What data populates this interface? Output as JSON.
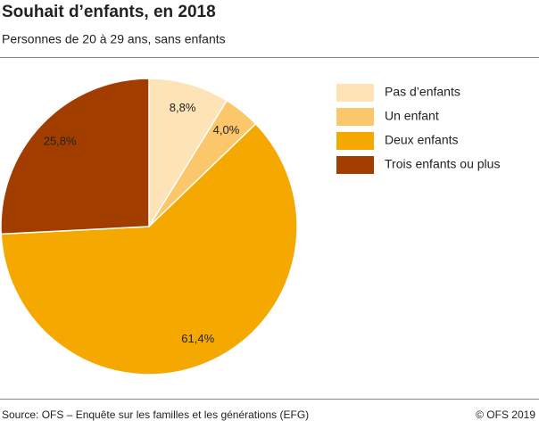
{
  "chart_data": {
    "type": "pie",
    "title": "Souhait d’enfants, en 2018",
    "subtitle": "Personnes de 20 à 29 ans, sans enfants",
    "categories": [
      "Pas d’enfants",
      "Un enfant",
      "Deux enfants",
      "Trois enfants ou plus"
    ],
    "values": [
      8.8,
      4.0,
      61.4,
      25.8
    ],
    "value_labels": [
      "8,8%",
      "4,0%",
      "61,4%",
      "25,8%"
    ],
    "colors": [
      "#fde3b6",
      "#fcc66a",
      "#f5a800",
      "#a23d00"
    ],
    "legend": "right",
    "source": "Source: OFS – Enquête sur les familles et les générations (EFG)",
    "credit": "© OFS 2019"
  }
}
